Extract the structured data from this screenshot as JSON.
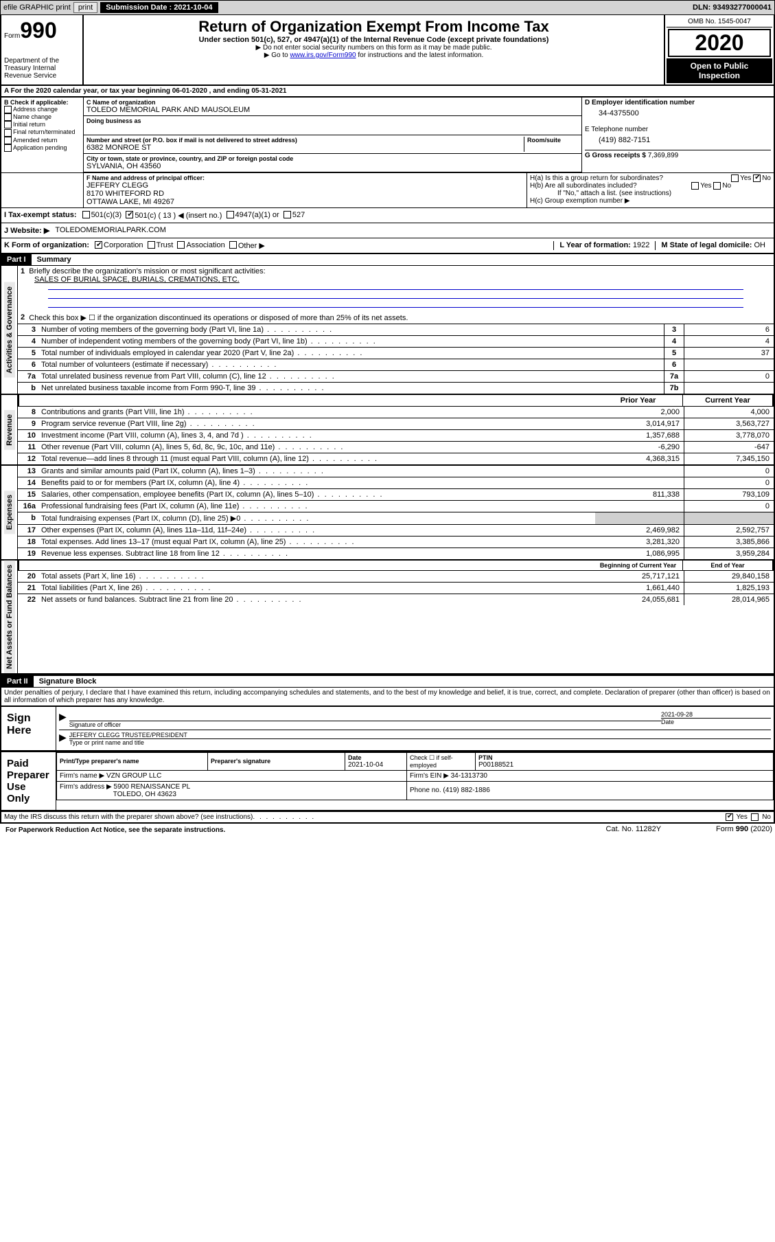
{
  "header": {
    "efile": "efile GRAPHIC print",
    "submission_label": "Submission Date : 2021-10-04",
    "dln": "DLN: 93493277000041",
    "form_prefix": "Form",
    "form_number": "990",
    "title": "Return of Organization Exempt From Income Tax",
    "subtitle": "Under section 501(c), 527, or 4947(a)(1) of the Internal Revenue Code (except private foundations)",
    "note1": "▶ Do not enter social security numbers on this form as it may be made public.",
    "note2_pre": "▶ Go to ",
    "note2_link": "www.irs.gov/Form990",
    "note2_post": " for instructions and the latest information.",
    "dept": "Department of the Treasury Internal Revenue Service",
    "omb": "OMB No. 1545-0047",
    "year": "2020",
    "open_public": "Open to Public Inspection"
  },
  "sectionA": "A   For the 2020 calendar year, or tax year beginning 06-01-2020    , and ending 05-31-2021",
  "sectionB": {
    "label": "B Check if applicable:",
    "items": [
      "Address change",
      "Name change",
      "Initial return",
      "Final return/terminated",
      "Amended return",
      "Application pending"
    ]
  },
  "sectionC": {
    "name_label": "C Name of organization",
    "name": "TOLEDO MEMORIAL PARK AND MAUSOLEUM",
    "dba_label": "Doing business as",
    "dba": "",
    "addr_label": "Number and street (or P.O. box if mail is not delivered to street address)",
    "room_label": "Room/suite",
    "addr": "6382 MONROE ST",
    "city_label": "City or town, state or province, country, and ZIP or foreign postal code",
    "city": "SYLVANIA, OH  43560"
  },
  "sectionD": {
    "label": "D Employer identification number",
    "value": "34-4375500"
  },
  "sectionE": {
    "label": "E Telephone number",
    "value": "(419) 882-7151"
  },
  "sectionF": {
    "label": "F Name and address of principal officer:",
    "name": "JEFFERY CLEGG",
    "addr1": "8170 WHITEFORD RD",
    "addr2": "OTTAWA LAKE, MI  49267"
  },
  "sectionG": {
    "label": "G Gross receipts $",
    "value": "7,369,899"
  },
  "sectionH": {
    "a": "H(a)  Is this a group return for subordinates?",
    "b": "H(b)  Are all subordinates included?",
    "b_note": "If \"No,\" attach a list. (see instructions)",
    "c": "H(c)  Group exemption number ▶"
  },
  "sectionI": {
    "label": "I    Tax-exempt status:",
    "opt1": "501(c)(3)",
    "opt2": "501(c) ( 13 ) ◀ (insert no.)",
    "opt3": "4947(a)(1) or",
    "opt4": "527"
  },
  "sectionJ": {
    "label": "J    Website: ▶",
    "value": "TOLEDOMEMORIALPARK.COM"
  },
  "sectionK": {
    "label": "K Form of organization:",
    "opts": [
      "Corporation",
      "Trust",
      "Association",
      "Other ▶"
    ]
  },
  "sectionL": {
    "label": "L Year of formation:",
    "value": "1922"
  },
  "sectionM": {
    "label": "M State of legal domicile:",
    "value": "OH"
  },
  "part1": {
    "header": "Part I",
    "title": "Summary",
    "line1_text": "Briefly describe the organization's mission or most significant activities:",
    "line1_value": "SALES OF BURIAL SPACE, BURIALS, CREMATIONS, ETC.",
    "line2_text": "Check this box ▶ ☐  if the organization discontinued its operations or disposed of more than 25% of its net assets.",
    "lines_gov": [
      {
        "n": "3",
        "text": "Number of voting members of the governing body (Part VI, line 1a)",
        "box": "3",
        "v": "6"
      },
      {
        "n": "4",
        "text": "Number of independent voting members of the governing body (Part VI, line 1b)",
        "box": "4",
        "v": "4"
      },
      {
        "n": "5",
        "text": "Total number of individuals employed in calendar year 2020 (Part V, line 2a)",
        "box": "5",
        "v": "37"
      },
      {
        "n": "6",
        "text": "Total number of volunteers (estimate if necessary)",
        "box": "6",
        "v": ""
      },
      {
        "n": "7a",
        "text": "Total unrelated business revenue from Part VIII, column (C), line 12",
        "box": "7a",
        "v": "0"
      },
      {
        "n": "b",
        "text": "Net unrelated business taxable income from Form 990-T, line 39",
        "box": "7b",
        "v": ""
      }
    ],
    "col_prior": "Prior Year",
    "col_current": "Current Year",
    "lines_rev": [
      {
        "n": "8",
        "text": "Contributions and grants (Part VIII, line 1h)",
        "p": "2,000",
        "c": "4,000"
      },
      {
        "n": "9",
        "text": "Program service revenue (Part VIII, line 2g)",
        "p": "3,014,917",
        "c": "3,563,727"
      },
      {
        "n": "10",
        "text": "Investment income (Part VIII, column (A), lines 3, 4, and 7d )",
        "p": "1,357,688",
        "c": "3,778,070"
      },
      {
        "n": "11",
        "text": "Other revenue (Part VIII, column (A), lines 5, 6d, 8c, 9c, 10c, and 11e)",
        "p": "-6,290",
        "c": "-647"
      },
      {
        "n": "12",
        "text": "Total revenue—add lines 8 through 11 (must equal Part VIII, column (A), line 12)",
        "p": "4,368,315",
        "c": "7,345,150"
      }
    ],
    "lines_exp": [
      {
        "n": "13",
        "text": "Grants and similar amounts paid (Part IX, column (A), lines 1–3)",
        "p": "",
        "c": "0"
      },
      {
        "n": "14",
        "text": "Benefits paid to or for members (Part IX, column (A), line 4)",
        "p": "",
        "c": "0"
      },
      {
        "n": "15",
        "text": "Salaries, other compensation, employee benefits (Part IX, column (A), lines 5–10)",
        "p": "811,338",
        "c": "793,109"
      },
      {
        "n": "16a",
        "text": "Professional fundraising fees (Part IX, column (A), line 11e)",
        "p": "",
        "c": "0"
      },
      {
        "n": "b",
        "text": "Total fundraising expenses (Part IX, column (D), line 25) ▶0",
        "p": "grey",
        "c": "grey"
      },
      {
        "n": "17",
        "text": "Other expenses (Part IX, column (A), lines 11a–11d, 11f–24e)",
        "p": "2,469,982",
        "c": "2,592,757"
      },
      {
        "n": "18",
        "text": "Total expenses. Add lines 13–17 (must equal Part IX, column (A), line 25)",
        "p": "3,281,320",
        "c": "3,385,866"
      },
      {
        "n": "19",
        "text": "Revenue less expenses. Subtract line 18 from line 12",
        "p": "1,086,995",
        "c": "3,959,284"
      }
    ],
    "col_begin": "Beginning of Current Year",
    "col_end": "End of Year",
    "lines_net": [
      {
        "n": "20",
        "text": "Total assets (Part X, line 16)",
        "p": "25,717,121",
        "c": "29,840,158"
      },
      {
        "n": "21",
        "text": "Total liabilities (Part X, line 26)",
        "p": "1,661,440",
        "c": "1,825,193"
      },
      {
        "n": "22",
        "text": "Net assets or fund balances. Subtract line 21 from line 20",
        "p": "24,055,681",
        "c": "28,014,965"
      }
    ],
    "vert_gov": "Activities & Governance",
    "vert_rev": "Revenue",
    "vert_exp": "Expenses",
    "vert_net": "Net Assets or Fund Balances"
  },
  "part2": {
    "header": "Part II",
    "title": "Signature Block",
    "penalty": "Under penalties of perjury, I declare that I have examined this return, including accompanying schedules and statements, and to the best of my knowledge and belief, it is true, correct, and complete. Declaration of preparer (other than officer) is based on all information of which preparer has any knowledge.",
    "sign_here": "Sign Here",
    "sig_officer": "Signature of officer",
    "sig_date": "Date",
    "sig_date_val": "2021-09-28",
    "sig_name": "JEFFERY CLEGG TRUSTEE/PRESIDENT",
    "sig_name_label": "Type or print name and title",
    "paid_prep": "Paid Preparer Use Only",
    "prep_name_label": "Print/Type preparer's name",
    "prep_sig_label": "Preparer's signature",
    "prep_date_label": "Date",
    "prep_date": "2021-10-04",
    "prep_check_label": "Check ☐ if self-employed",
    "ptin_label": "PTIN",
    "ptin": "P00188521",
    "firm_name_label": "Firm's name    ▶",
    "firm_name": "VZN GROUP LLC",
    "firm_ein_label": "Firm's EIN ▶",
    "firm_ein": "34-1313730",
    "firm_addr_label": "Firm's address ▶",
    "firm_addr1": "5900 RENAISSANCE PL",
    "firm_addr2": "TOLEDO, OH  43623",
    "phone_label": "Phone no.",
    "phone": "(419) 882-1886"
  },
  "footer": {
    "discuss": "May the IRS discuss this return with the preparer shown above? (see instructions)",
    "paperwork": "For Paperwork Reduction Act Notice, see the separate instructions.",
    "cat": "Cat. No. 11282Y",
    "form": "Form 990 (2020)",
    "yes": "Yes",
    "no": "No"
  }
}
